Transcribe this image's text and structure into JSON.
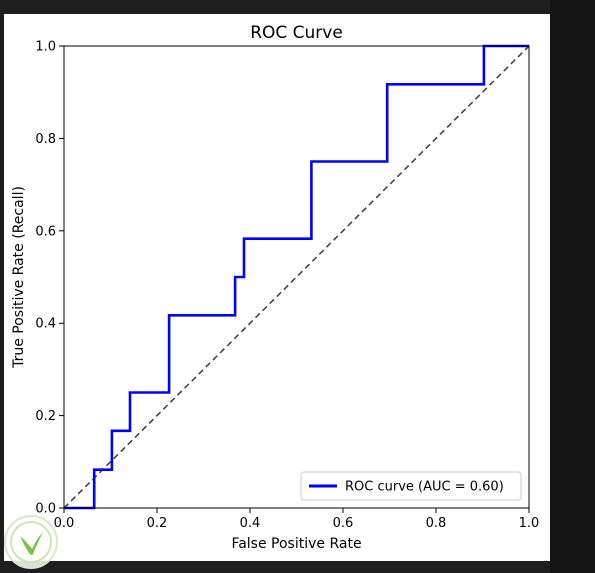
{
  "colors": {
    "background": "#1e1e1e",
    "figure_bg": "#ffffff",
    "roc_line": "#0000ff",
    "diagonal": "#444444",
    "axis": "#000000",
    "watermark": "#7bc142"
  },
  "icons": {
    "watermark": "leaf-logo-icon"
  },
  "chart_data": {
    "type": "line",
    "title": "ROC Curve",
    "xlabel": "False Positive Rate",
    "ylabel": "True Positive Rate (Recall)",
    "xlim": [
      0.0,
      1.0
    ],
    "ylim": [
      0.0,
      1.0
    ],
    "xticks": [
      0.0,
      0.2,
      0.4,
      0.6,
      0.8,
      1.0
    ],
    "yticks": [
      0.0,
      0.2,
      0.4,
      0.6,
      0.8,
      1.0
    ],
    "xtick_labels": [
      "0.0",
      "0.2",
      "0.4",
      "0.6",
      "0.8",
      "1.0"
    ],
    "ytick_labels": [
      "0.0",
      "0.2",
      "0.4",
      "0.6",
      "0.8",
      "1.0"
    ],
    "grid": false,
    "legend_position": "lower-right",
    "series": [
      {
        "name": "ROC curve (AUC = 0.60)",
        "style": "solid",
        "x": [
          0.0,
          0.065,
          0.065,
          0.103,
          0.103,
          0.142,
          0.142,
          0.226,
          0.226,
          0.368,
          0.368,
          0.387,
          0.387,
          0.532,
          0.532,
          0.695,
          0.695,
          0.903,
          0.903,
          1.0
        ],
        "y": [
          0.0,
          0.0,
          0.083,
          0.083,
          0.167,
          0.167,
          0.25,
          0.25,
          0.417,
          0.417,
          0.5,
          0.5,
          0.583,
          0.583,
          0.75,
          0.75,
          0.917,
          0.917,
          1.0,
          1.0
        ]
      },
      {
        "style": "dashed",
        "x": [
          0.0,
          1.0
        ],
        "y": [
          0.0,
          1.0
        ]
      }
    ]
  }
}
